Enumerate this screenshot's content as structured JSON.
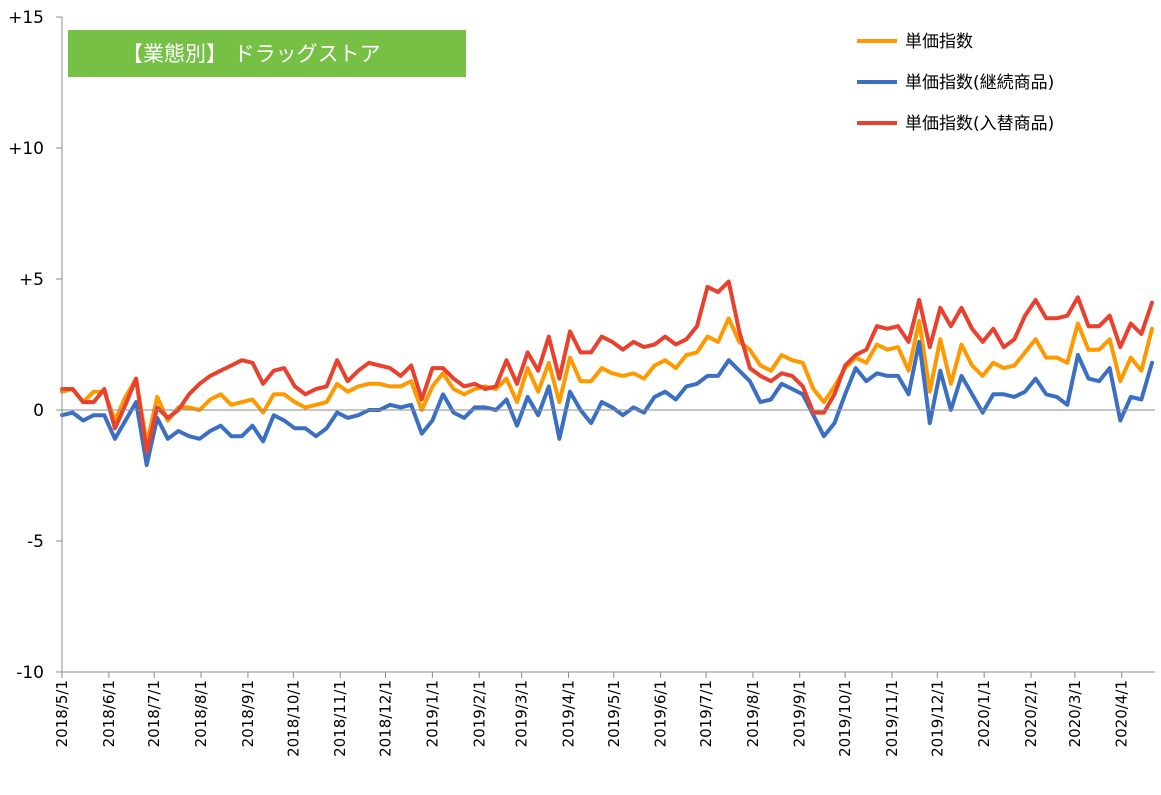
{
  "chart_data": {
    "type": "line",
    "title": "【業態別】 ドラッグストア",
    "title_bg": "#76c046",
    "ylim": [
      -10,
      15
    ],
    "y_ticks": [
      15,
      10,
      5,
      0,
      -5,
      -10
    ],
    "y_tick_labels": [
      "+15",
      "+10",
      "+5",
      "0",
      "-5",
      "-10"
    ],
    "x_tick_labels": [
      "2018/5/1",
      "2018/6/1",
      "2018/7/1",
      "2018/8/1",
      "2018/9/1",
      "2018/10/1",
      "2018/11/1",
      "2018/12/1",
      "2019/1/1",
      "2019/2/1",
      "2019/3/1",
      "2019/4/1",
      "2019/5/1",
      "2019/6/1",
      "2019/7/1",
      "2019/8/1",
      "2019/9/1",
      "2019/10/1",
      "2019/11/1",
      "2019/12/1",
      "2020/1/1",
      "2020/2/1",
      "2020/3/1",
      "2020/4/1"
    ],
    "x_tick_index": [
      0,
      4.43,
      8.71,
      13.14,
      17.57,
      21.86,
      26.29,
      30.57,
      35,
      39.43,
      43.43,
      47.86,
      52.14,
      56.57,
      60.86,
      65.29,
      69.71,
      74,
      78.43,
      82.71,
      87.14,
      91.57,
      95.71,
      100.14
    ],
    "legend_position": "top-right",
    "grid": false,
    "series": [
      {
        "name": "単価指数",
        "color": "#ff9900",
        "values": [
          0.7,
          0.8,
          0.3,
          0.7,
          0.7,
          -0.4,
          0.5,
          1.2,
          -1.3,
          0.5,
          -0.4,
          0.1,
          0.1,
          0.0,
          0.4,
          0.6,
          0.2,
          0.3,
          0.4,
          -0.1,
          0.6,
          0.6,
          0.3,
          0.1,
          0.2,
          0.3,
          1.0,
          0.7,
          0.9,
          1.0,
          1.0,
          0.9,
          0.9,
          1.1,
          0.0,
          0.9,
          1.4,
          0.8,
          0.6,
          0.8,
          0.9,
          0.8,
          1.2,
          0.3,
          1.6,
          0.7,
          1.8,
          0.3,
          2.0,
          1.1,
          1.1,
          1.6,
          1.4,
          1.3,
          1.4,
          1.2,
          1.7,
          1.9,
          1.6,
          2.1,
          2.2,
          2.8,
          2.6,
          3.5,
          2.6,
          2.3,
          1.7,
          1.5,
          2.1,
          1.9,
          1.8,
          0.8,
          0.3,
          0.9,
          1.6,
          2.0,
          1.8,
          2.5,
          2.3,
          2.4,
          1.5,
          3.4,
          0.7,
          2.7,
          1.0,
          2.5,
          1.7,
          1.3,
          1.8,
          1.6,
          1.7,
          2.2,
          2.7,
          2.0,
          2.0,
          1.8,
          3.3,
          2.3,
          2.3,
          2.7,
          1.1,
          2.0,
          1.5,
          3.1
        ]
      },
      {
        "name": "単価指数(継続商品)",
        "color": "#3a6fc4",
        "values": [
          -0.2,
          -0.1,
          -0.4,
          -0.2,
          -0.2,
          -1.1,
          -0.4,
          0.3,
          -2.1,
          -0.3,
          -1.1,
          -0.8,
          -1.0,
          -1.1,
          -0.8,
          -0.6,
          -1.0,
          -1.0,
          -0.6,
          -1.2,
          -0.2,
          -0.4,
          -0.7,
          -0.7,
          -1.0,
          -0.7,
          -0.1,
          -0.3,
          -0.2,
          0.0,
          0.0,
          0.2,
          0.1,
          0.2,
          -0.9,
          -0.4,
          0.6,
          -0.1,
          -0.3,
          0.1,
          0.1,
          0.0,
          0.4,
          -0.6,
          0.5,
          -0.2,
          0.9,
          -1.1,
          0.7,
          0.0,
          -0.5,
          0.3,
          0.1,
          -0.2,
          0.1,
          -0.1,
          0.5,
          0.7,
          0.4,
          0.9,
          1.0,
          1.3,
          1.3,
          1.9,
          1.5,
          1.1,
          0.3,
          0.4,
          1.0,
          0.8,
          0.6,
          -0.2,
          -1.0,
          -0.5,
          0.6,
          1.6,
          1.1,
          1.4,
          1.3,
          1.3,
          0.6,
          2.6,
          -0.5,
          1.5,
          0.0,
          1.3,
          0.6,
          -0.1,
          0.6,
          0.6,
          0.5,
          0.7,
          1.2,
          0.6,
          0.5,
          0.2,
          2.1,
          1.2,
          1.1,
          1.6,
          -0.4,
          0.5,
          0.4,
          1.8
        ]
      },
      {
        "name": "単価指数(入替商品)",
        "color": "#e8412e",
        "values": [
          0.8,
          0.8,
          0.3,
          0.3,
          0.8,
          -0.7,
          0.2,
          1.2,
          -1.6,
          0.1,
          -0.3,
          0.0,
          0.6,
          1.0,
          1.3,
          1.5,
          1.7,
          1.9,
          1.8,
          1.0,
          1.5,
          1.6,
          0.9,
          0.6,
          0.8,
          0.9,
          1.9,
          1.1,
          1.5,
          1.8,
          1.7,
          1.6,
          1.3,
          1.7,
          0.4,
          1.6,
          1.6,
          1.2,
          0.9,
          1.0,
          0.8,
          0.9,
          1.9,
          1.0,
          2.2,
          1.5,
          2.8,
          1.2,
          3.0,
          2.2,
          2.2,
          2.8,
          2.6,
          2.3,
          2.6,
          2.4,
          2.5,
          2.8,
          2.5,
          2.7,
          3.2,
          4.7,
          4.5,
          4.9,
          3.0,
          1.6,
          1.3,
          1.1,
          1.4,
          1.3,
          0.9,
          -0.1,
          -0.1,
          0.6,
          1.7,
          2.1,
          2.3,
          3.2,
          3.1,
          3.2,
          2.6,
          4.2,
          2.4,
          3.9,
          3.2,
          3.9,
          3.1,
          2.6,
          3.1,
          2.4,
          2.7,
          3.6,
          4.2,
          3.5,
          3.5,
          3.6,
          4.3,
          3.2,
          3.2,
          3.6,
          2.4,
          3.3,
          2.9,
          4.1
        ]
      }
    ]
  }
}
